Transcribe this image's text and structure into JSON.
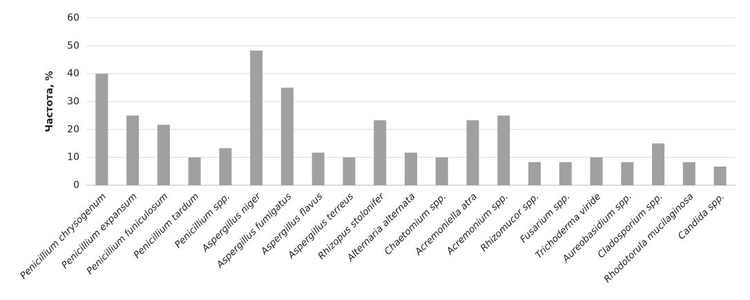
{
  "chart_data": {
    "type": "bar",
    "y_label": "Частота, %",
    "categories": [
      "Penicillium chrysogenum",
      "Penicillium expansum",
      "Penicillium funiculosum",
      "Penicillium tardum",
      "Penicillium spp.",
      "Aspergillus niger",
      "Aspergillus fumigatus",
      "Aspergillus flavus",
      "Aspergillus terreus",
      "Rhizopus stolonifer",
      "Alternaria alternata",
      "Chaetomium spp.",
      "Acremoniella atra",
      "Acremonium spp.",
      "Rhizomucor spp.",
      "Fusarium spp.",
      "Trichoderma viride",
      "Aureobasidium spp.",
      "Cladosporium spp.",
      "Rhodotorula mucilaginosa",
      "Candida spp."
    ],
    "values": [
      40,
      25,
      21.7,
      10,
      13.3,
      48.3,
      35,
      11.7,
      10,
      23.3,
      11.7,
      10,
      23.3,
      25,
      8.3,
      8.3,
      10,
      8.3,
      15,
      8.3,
      6.7
    ],
    "color": "#a0a0a0",
    "ylim": [
      0,
      60
    ],
    "yticks": [
      0,
      10,
      20,
      30,
      40,
      50,
      60
    ],
    "grid": true
  }
}
